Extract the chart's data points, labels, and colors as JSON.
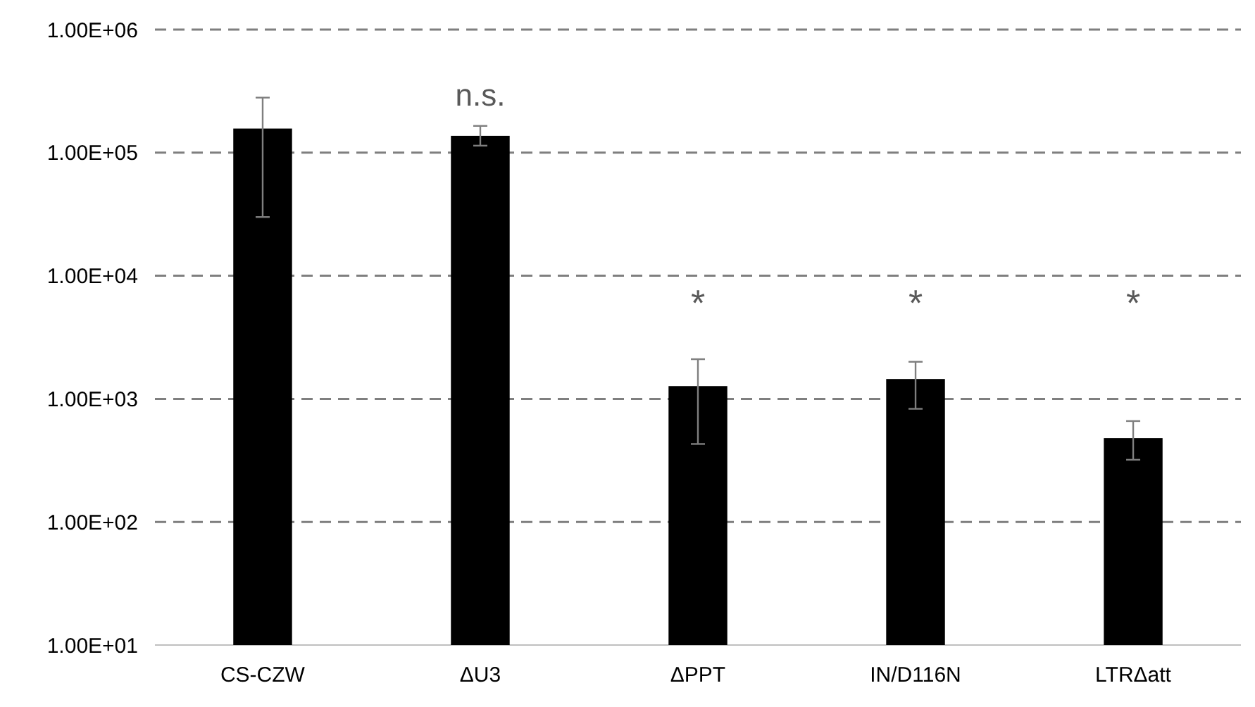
{
  "chart_data": {
    "type": "bar",
    "categories": [
      "CS-CZW",
      "ΔU3",
      "ΔPPT",
      "IN/D116N",
      "LTRΔatt"
    ],
    "values": [
      157000,
      137000,
      1270,
      1450,
      480
    ],
    "errors": [
      [
        30000,
        280000
      ],
      [
        114000,
        165000
      ],
      [
        430,
        2100
      ],
      [
        830,
        2000
      ],
      [
        320,
        660
      ]
    ],
    "color": "#000000",
    "log": true,
    "grid": "y",
    "line_style": "dashed",
    "ylim": [
      10,
      1000000
    ],
    "yticks": [
      {
        "value": 10,
        "label": "1.00E+01"
      },
      {
        "value": 100,
        "label": "1.00E+02"
      },
      {
        "value": 1000,
        "label": "1.00E+03"
      },
      {
        "value": 10000,
        "label": "1.00E+04"
      },
      {
        "value": 100000,
        "label": "1.00E+05"
      },
      {
        "value": 1000000,
        "label": "1.00E+06"
      }
    ],
    "annotations": [
      "n.s.",
      "*",
      "*",
      "*"
    ]
  }
}
